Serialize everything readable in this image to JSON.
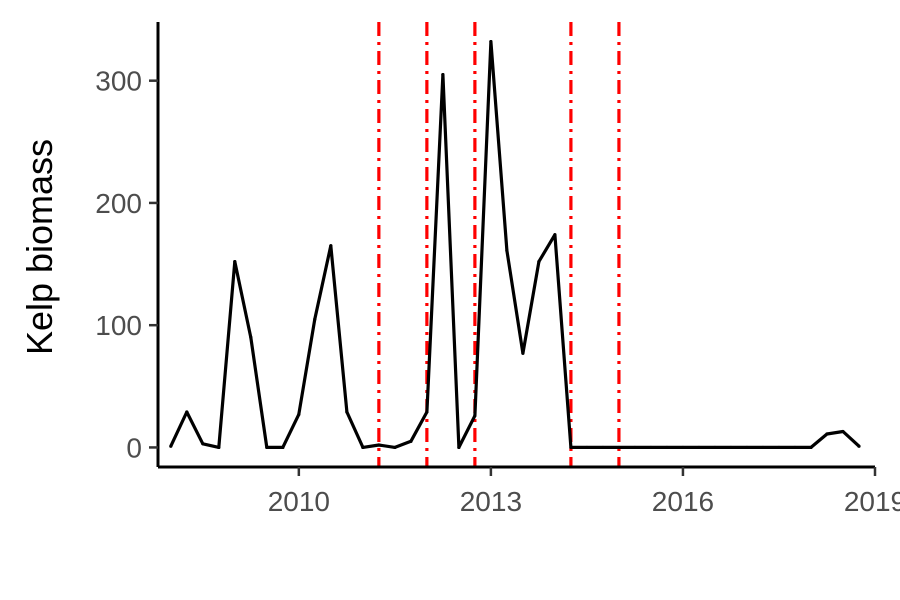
{
  "chart_data": {
    "type": "line",
    "title": "",
    "xlabel": "",
    "ylabel": "Kelp biomass",
    "xlim": [
      2007.8,
      2019.0
    ],
    "ylim": [
      -16,
      348
    ],
    "x_ticks": [
      2010,
      2013,
      2016,
      2019
    ],
    "y_ticks": [
      0,
      100,
      200,
      300
    ],
    "grid": false,
    "legend": "none",
    "series": [
      {
        "color": "#000000",
        "x": [
          2008.0,
          2008.25,
          2008.5,
          2008.75,
          2009.0,
          2009.25,
          2009.5,
          2009.75,
          2010.0,
          2010.25,
          2010.5,
          2010.75,
          2011.0,
          2011.25,
          2011.5,
          2011.75,
          2012.0,
          2012.25,
          2012.5,
          2012.75,
          2013.0,
          2013.25,
          2013.5,
          2013.75,
          2014.0,
          2014.25,
          2014.5,
          2014.75,
          2015.0,
          2015.25,
          2015.5,
          2015.75,
          2016.0,
          2016.25,
          2016.5,
          2016.75,
          2017.0,
          2017.25,
          2017.5,
          2017.75,
          2018.0,
          2018.25,
          2018.5,
          2018.75
        ],
        "values": [
          1,
          29,
          3,
          0,
          152,
          90,
          0,
          0,
          27,
          105,
          165,
          29,
          0,
          2,
          0,
          5,
          29,
          305,
          0,
          26,
          332,
          161,
          77,
          152,
          174,
          0,
          0,
          0,
          0,
          0,
          0,
          0,
          0,
          0,
          0,
          0,
          0,
          0,
          0,
          0,
          0,
          11,
          13,
          1
        ]
      }
    ],
    "vlines": {
      "color": "#ff0000",
      "style": "dash-dot",
      "x": [
        2011.25,
        2012.0,
        2012.75,
        2014.25,
        2015.0
      ]
    }
  }
}
